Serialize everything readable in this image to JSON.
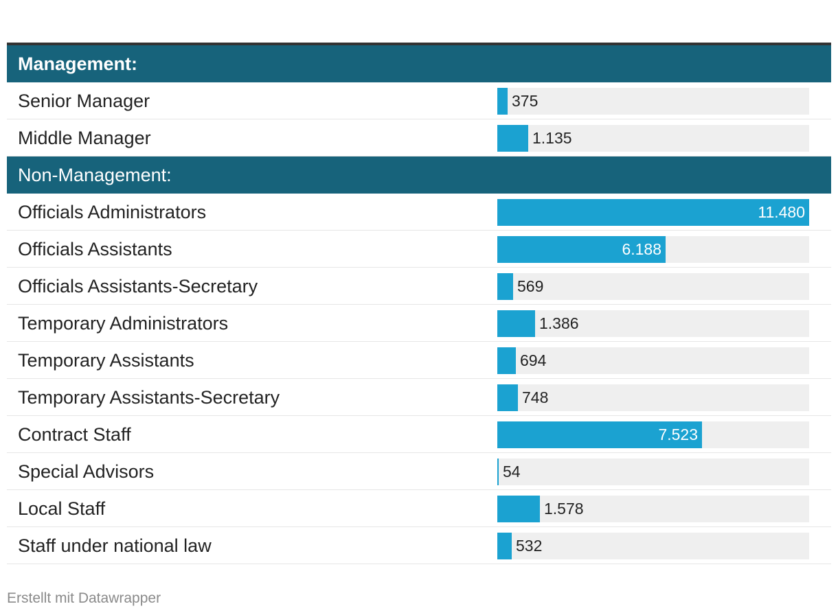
{
  "colors": {
    "header": "#17637b",
    "bar": "#1ba2d1",
    "track": "#efefef"
  },
  "chart_data": {
    "type": "bar",
    "orientation": "horizontal",
    "max": 11480,
    "groups": [
      {
        "label": "Management:",
        "bold": true,
        "rows": [
          {
            "label": "Senior Manager",
            "value": 375,
            "display": "375"
          },
          {
            "label": "Middle Manager",
            "value": 1135,
            "display": "1.135"
          }
        ]
      },
      {
        "label": "Non-Management:",
        "bold": false,
        "rows": [
          {
            "label": "Officials Administrators",
            "value": 11480,
            "display": "11.480"
          },
          {
            "label": "Officials Assistants",
            "value": 6188,
            "display": "6.188"
          },
          {
            "label": "Officials Assistants-Secretary",
            "value": 569,
            "display": "569"
          },
          {
            "label": "Temporary Administrators",
            "value": 1386,
            "display": "1.386"
          },
          {
            "label": "Temporary Assistants",
            "value": 694,
            "display": "694"
          },
          {
            "label": "Temporary Assistants-Secretary",
            "value": 748,
            "display": "748"
          },
          {
            "label": "Contract Staff",
            "value": 7523,
            "display": "7.523"
          },
          {
            "label": "Special Advisors",
            "value": 54,
            "display": "54"
          },
          {
            "label": "Local Staff",
            "value": 1578,
            "display": "1.578"
          },
          {
            "label": "Staff under national law",
            "value": 532,
            "display": "532"
          }
        ]
      }
    ]
  },
  "footer": {
    "credit": "Erstellt mit Datawrapper"
  }
}
